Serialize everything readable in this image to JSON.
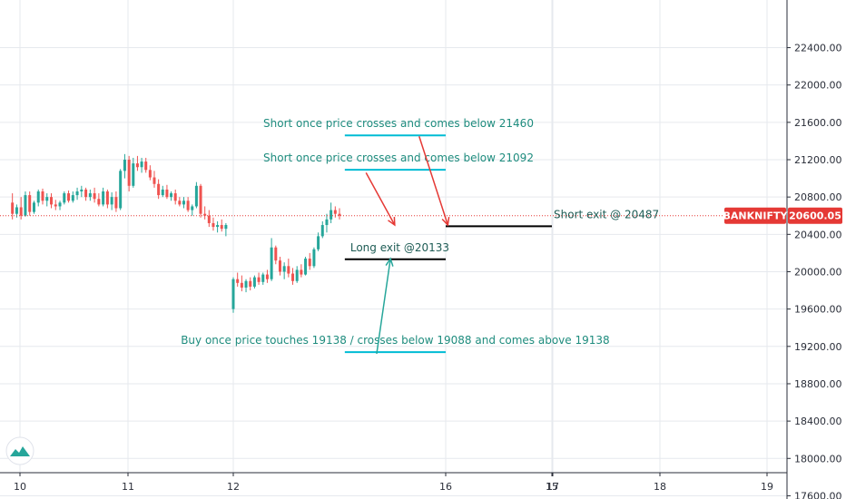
{
  "chart_data": {
    "type": "candlestick",
    "symbol": "BANKNIFTY",
    "last_price": 20600.05,
    "last_price_label": "20600.05",
    "ylim": [
      17400,
      22600
    ],
    "y_ticks": [
      17600,
      18000,
      18400,
      18800,
      19200,
      19600,
      20000,
      20400,
      20800,
      21200,
      21600,
      22000,
      22400
    ],
    "y_tick_labels": [
      "17600.00",
      "18000.00",
      "18400.00",
      "18800.00",
      "19200.00",
      "19600.00",
      "20000.00",
      "20400.00",
      "20800.00",
      "21200.00",
      "21600.00",
      "22000.00",
      "22400.00"
    ],
    "x_ticks": [
      10,
      11,
      12,
      15,
      16,
      17,
      18,
      19
    ],
    "x_tick_labels": [
      "10",
      "11",
      "12",
      "15",
      "16",
      "17",
      "18",
      "19"
    ],
    "grid": true,
    "colors": {
      "up": "#26a69a",
      "down": "#ef5350",
      "price_line": "#e53935",
      "annotation_text": "#1e8c7e",
      "level_line": "#00bcd4",
      "exit_line": "#000000",
      "arrow_short": "#e53935",
      "arrow_long": "#26a69a",
      "grid": "#e6e9ee",
      "axis": "#2a2e39"
    },
    "candles": [
      {
        "x": 9.93,
        "o": 20740,
        "h": 20840,
        "l": 20560,
        "c": 20620
      },
      {
        "x": 9.97,
        "o": 20620,
        "h": 20720,
        "l": 20580,
        "c": 20690
      },
      {
        "x": 10.01,
        "o": 20690,
        "h": 20800,
        "l": 20560,
        "c": 20600
      },
      {
        "x": 10.05,
        "o": 20600,
        "h": 20860,
        "l": 20590,
        "c": 20820
      },
      {
        "x": 10.09,
        "o": 20820,
        "h": 20860,
        "l": 20600,
        "c": 20640
      },
      {
        "x": 10.13,
        "o": 20640,
        "h": 20760,
        "l": 20620,
        "c": 20740
      },
      {
        "x": 10.17,
        "o": 20740,
        "h": 20880,
        "l": 20700,
        "c": 20860
      },
      {
        "x": 10.21,
        "o": 20860,
        "h": 20890,
        "l": 20720,
        "c": 20760
      },
      {
        "x": 10.25,
        "o": 20760,
        "h": 20840,
        "l": 20700,
        "c": 20800
      },
      {
        "x": 10.29,
        "o": 20800,
        "h": 20840,
        "l": 20680,
        "c": 20720
      },
      {
        "x": 10.33,
        "o": 20720,
        "h": 20770,
        "l": 20660,
        "c": 20700
      },
      {
        "x": 10.37,
        "o": 20700,
        "h": 20760,
        "l": 20660,
        "c": 20740
      },
      {
        "x": 10.41,
        "o": 20740,
        "h": 20860,
        "l": 20720,
        "c": 20840
      },
      {
        "x": 10.45,
        "o": 20840,
        "h": 20870,
        "l": 20740,
        "c": 20760
      },
      {
        "x": 10.49,
        "o": 20760,
        "h": 20860,
        "l": 20740,
        "c": 20820
      },
      {
        "x": 10.53,
        "o": 20820,
        "h": 20900,
        "l": 20770,
        "c": 20860
      },
      {
        "x": 10.57,
        "o": 20860,
        "h": 20920,
        "l": 20800,
        "c": 20880
      },
      {
        "x": 10.61,
        "o": 20880,
        "h": 20900,
        "l": 20760,
        "c": 20800
      },
      {
        "x": 10.65,
        "o": 20800,
        "h": 20880,
        "l": 20760,
        "c": 20840
      },
      {
        "x": 10.69,
        "o": 20840,
        "h": 20900,
        "l": 20740,
        "c": 20780
      },
      {
        "x": 10.73,
        "o": 20780,
        "h": 20840,
        "l": 20700,
        "c": 20720
      },
      {
        "x": 10.77,
        "o": 20720,
        "h": 20900,
        "l": 20700,
        "c": 20860
      },
      {
        "x": 10.81,
        "o": 20860,
        "h": 20880,
        "l": 20680,
        "c": 20720
      },
      {
        "x": 10.85,
        "o": 20720,
        "h": 20850,
        "l": 20660,
        "c": 20800
      },
      {
        "x": 10.89,
        "o": 20800,
        "h": 20860,
        "l": 20640,
        "c": 20680
      },
      {
        "x": 10.93,
        "o": 20680,
        "h": 21100,
        "l": 20660,
        "c": 21080
      },
      {
        "x": 10.97,
        "o": 21080,
        "h": 21260,
        "l": 21000,
        "c": 21200
      },
      {
        "x": 11.01,
        "o": 21200,
        "h": 21240,
        "l": 20860,
        "c": 20920
      },
      {
        "x": 11.05,
        "o": 20920,
        "h": 21220,
        "l": 20900,
        "c": 21160
      },
      {
        "x": 11.09,
        "o": 21160,
        "h": 21240,
        "l": 21080,
        "c": 21120
      },
      {
        "x": 11.13,
        "o": 21120,
        "h": 21220,
        "l": 21060,
        "c": 21180
      },
      {
        "x": 11.17,
        "o": 21180,
        "h": 21220,
        "l": 21060,
        "c": 21090
      },
      {
        "x": 11.21,
        "o": 21090,
        "h": 21140,
        "l": 20980,
        "c": 21010
      },
      {
        "x": 11.25,
        "o": 21010,
        "h": 21080,
        "l": 20900,
        "c": 20940
      },
      {
        "x": 11.29,
        "o": 20940,
        "h": 20990,
        "l": 20780,
        "c": 20820
      },
      {
        "x": 11.33,
        "o": 20820,
        "h": 20920,
        "l": 20800,
        "c": 20880
      },
      {
        "x": 11.37,
        "o": 20880,
        "h": 20930,
        "l": 20780,
        "c": 20800
      },
      {
        "x": 11.41,
        "o": 20800,
        "h": 20860,
        "l": 20760,
        "c": 20840
      },
      {
        "x": 11.45,
        "o": 20840,
        "h": 20880,
        "l": 20720,
        "c": 20760
      },
      {
        "x": 11.49,
        "o": 20760,
        "h": 20800,
        "l": 20700,
        "c": 20720
      },
      {
        "x": 11.53,
        "o": 20720,
        "h": 20800,
        "l": 20680,
        "c": 20760
      },
      {
        "x": 11.57,
        "o": 20760,
        "h": 20800,
        "l": 20640,
        "c": 20660
      },
      {
        "x": 11.61,
        "o": 20660,
        "h": 20720,
        "l": 20600,
        "c": 20700
      },
      {
        "x": 11.65,
        "o": 20700,
        "h": 20960,
        "l": 20680,
        "c": 20920
      },
      {
        "x": 11.69,
        "o": 20920,
        "h": 20940,
        "l": 20580,
        "c": 20620
      },
      {
        "x": 11.73,
        "o": 20620,
        "h": 20700,
        "l": 20560,
        "c": 20600
      },
      {
        "x": 11.77,
        "o": 20600,
        "h": 20660,
        "l": 20480,
        "c": 20520
      },
      {
        "x": 11.81,
        "o": 20520,
        "h": 20580,
        "l": 20440,
        "c": 20480
      },
      {
        "x": 11.85,
        "o": 20480,
        "h": 20540,
        "l": 20420,
        "c": 20500
      },
      {
        "x": 11.89,
        "o": 20500,
        "h": 20560,
        "l": 20430,
        "c": 20460
      },
      {
        "x": 11.93,
        "o": 20460,
        "h": 20520,
        "l": 20380,
        "c": 20500
      },
      {
        "x": 12.0,
        "o": 19600,
        "h": 19940,
        "l": 19560,
        "c": 19920
      },
      {
        "x": 12.04,
        "o": 19920,
        "h": 19990,
        "l": 19840,
        "c": 19880
      },
      {
        "x": 12.08,
        "o": 19880,
        "h": 19960,
        "l": 19790,
        "c": 19830
      },
      {
        "x": 12.12,
        "o": 19830,
        "h": 19920,
        "l": 19780,
        "c": 19900
      },
      {
        "x": 12.16,
        "o": 19900,
        "h": 19940,
        "l": 19800,
        "c": 19840
      },
      {
        "x": 12.2,
        "o": 19840,
        "h": 19960,
        "l": 19820,
        "c": 19940
      },
      {
        "x": 12.24,
        "o": 19940,
        "h": 19990,
        "l": 19860,
        "c": 19890
      },
      {
        "x": 12.28,
        "o": 19890,
        "h": 19990,
        "l": 19860,
        "c": 19970
      },
      {
        "x": 12.32,
        "o": 19970,
        "h": 20020,
        "l": 19880,
        "c": 19920
      },
      {
        "x": 12.36,
        "o": 19920,
        "h": 20360,
        "l": 19900,
        "c": 20260
      },
      {
        "x": 12.4,
        "o": 20260,
        "h": 20280,
        "l": 20080,
        "c": 20120
      },
      {
        "x": 12.44,
        "o": 20120,
        "h": 20160,
        "l": 19960,
        "c": 20000
      },
      {
        "x": 12.48,
        "o": 20000,
        "h": 20100,
        "l": 19920,
        "c": 20060
      },
      {
        "x": 12.52,
        "o": 20060,
        "h": 20140,
        "l": 19940,
        "c": 19980
      },
      {
        "x": 12.56,
        "o": 19980,
        "h": 20040,
        "l": 19860,
        "c": 19900
      },
      {
        "x": 12.6,
        "o": 19900,
        "h": 20060,
        "l": 19880,
        "c": 20020
      },
      {
        "x": 12.64,
        "o": 20020,
        "h": 20080,
        "l": 19940,
        "c": 19970
      },
      {
        "x": 12.68,
        "o": 19970,
        "h": 20160,
        "l": 19960,
        "c": 20140
      },
      {
        "x": 12.72,
        "o": 20140,
        "h": 20200,
        "l": 20020,
        "c": 20060
      },
      {
        "x": 12.76,
        "o": 20060,
        "h": 20260,
        "l": 20040,
        "c": 20240
      },
      {
        "x": 12.8,
        "o": 20240,
        "h": 20420,
        "l": 20220,
        "c": 20380
      },
      {
        "x": 12.84,
        "o": 20380,
        "h": 20540,
        "l": 20360,
        "c": 20500
      },
      {
        "x": 12.88,
        "o": 20500,
        "h": 20620,
        "l": 20420,
        "c": 20560
      },
      {
        "x": 12.92,
        "o": 20560,
        "h": 20740,
        "l": 20520,
        "c": 20660
      },
      {
        "x": 12.96,
        "o": 20660,
        "h": 20700,
        "l": 20580,
        "c": 20620
      },
      {
        "x": 13.0,
        "o": 20620,
        "h": 20680,
        "l": 20560,
        "c": 20600
      }
    ],
    "levels": [
      {
        "label": "Short once price crosses and comes below 21460",
        "value": 21460,
        "x_from": 15.05,
        "x_to": 16.0,
        "kind": "level"
      },
      {
        "label": "Short once price crosses and comes below 21092",
        "value": 21092,
        "x_from": 15.05,
        "x_to": 16.0,
        "kind": "level"
      },
      {
        "label": "Short exit @ 20487",
        "value": 20487,
        "x_from": 15.0,
        "x_to": 16.0,
        "kind": "exit"
      },
      {
        "label": "Long exit @20133",
        "value": 20133,
        "x_from": 15.05,
        "x_to": 16.0,
        "kind": "exit"
      },
      {
        "label": "Buy once price touches 19138 / crosses below 19088 and comes above 19138",
        "value": 19138,
        "x_from": 15.05,
        "x_to": 16.0,
        "kind": "level"
      }
    ],
    "arrows": [
      {
        "kind": "short",
        "from": [
          15.25,
          21060
        ],
        "to": [
          15.52,
          20500
        ]
      },
      {
        "kind": "short",
        "from": [
          15.75,
          21450
        ],
        "to": [
          16.02,
          20500
        ]
      },
      {
        "kind": "long",
        "from": [
          15.35,
          19120
        ],
        "to": [
          15.48,
          20140
        ]
      }
    ]
  }
}
